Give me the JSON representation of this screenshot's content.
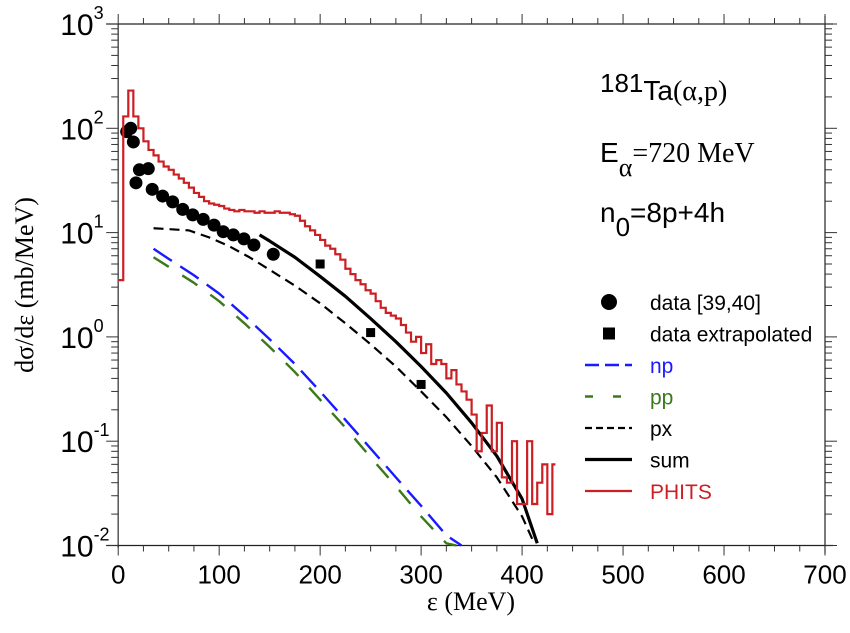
{
  "chart_data": {
    "type": "line",
    "title": "",
    "xlabel": "ε (MeV)",
    "ylabel": "dσ/dε (mb/MeV)",
    "xscale": "linear",
    "yscale": "log",
    "xlim": [
      0,
      700
    ],
    "ylim": [
      0.01,
      1000
    ],
    "x_ticks": [
      0,
      100,
      200,
      300,
      400,
      500,
      600,
      700
    ],
    "x_tick_labels": [
      "0",
      "100",
      "200",
      "300",
      "400",
      "500",
      "600",
      "700"
    ],
    "y_ticks": [
      0.01,
      0.1,
      1,
      10,
      100,
      1000
    ],
    "y_tick_labels": [
      {
        "base": "10",
        "exp": "-2"
      },
      {
        "base": "10",
        "exp": "-1"
      },
      {
        "base": "10",
        "exp": "0"
      },
      {
        "base": "10",
        "exp": "1"
      },
      {
        "base": "10",
        "exp": "2"
      },
      {
        "base": "10",
        "exp": "3"
      }
    ],
    "grid": false,
    "legend_position": "center-right",
    "annotations": [
      {
        "id": "reaction",
        "sup": "181",
        "main": "Ta",
        "extra": "(α,p)"
      },
      {
        "id": "energy",
        "main": "E",
        "sub": "α",
        "extra": "=720 MeV"
      },
      {
        "id": "excitons",
        "main": "n",
        "sub": "0",
        "extra": "=8p+4h"
      }
    ],
    "series": [
      {
        "name": "data [39,40]",
        "style": "marker-circle",
        "color": "#000000",
        "x": [
          8.4,
          12.4,
          15,
          17.6,
          21,
          29.8,
          33.7,
          44,
          53.9,
          63.9,
          73.8,
          84.2,
          94.9,
          104,
          114,
          124.5,
          134.4,
          153.6
        ],
        "y": [
          92.8,
          100,
          74,
          30,
          40,
          41,
          26,
          22.4,
          19.7,
          16.7,
          14.8,
          13.4,
          11.8,
          10.2,
          9.5,
          8.7,
          7.6,
          6.2
        ]
      },
      {
        "name": "data extrapolated",
        "style": "marker-square",
        "color": "#000000",
        "x": [
          200,
          250,
          300
        ],
        "y": [
          5.0,
          1.1,
          0.35
        ]
      },
      {
        "name": "np",
        "style": "long-dash",
        "color": "#1a1aff",
        "x": [
          35,
          50,
          75,
          100,
          125,
          150,
          175,
          200,
          225,
          250,
          275,
          300,
          325,
          340
        ],
        "y": [
          7.0,
          5.6,
          3.9,
          2.6,
          1.6,
          0.95,
          0.55,
          0.3,
          0.16,
          0.085,
          0.045,
          0.024,
          0.0125,
          0.009
        ]
      },
      {
        "name": "pp",
        "style": "sparse-dash",
        "color": "#3a7a1a",
        "x": [
          35,
          50,
          75,
          100,
          125,
          150,
          175,
          200,
          225,
          250,
          275,
          300,
          325,
          335
        ],
        "y": [
          5.8,
          4.7,
          3.3,
          2.2,
          1.35,
          0.8,
          0.46,
          0.25,
          0.135,
          0.07,
          0.037,
          0.019,
          0.0105,
          0.0092
        ]
      },
      {
        "name": "px",
        "style": "short-dash",
        "color": "#000000",
        "x": [
          35,
          50,
          70,
          90,
          110,
          130,
          150,
          175,
          200,
          225,
          250,
          275,
          300,
          325,
          350,
          375,
          400,
          412
        ],
        "y": [
          11,
          10.8,
          10.5,
          9.0,
          7.4,
          5.8,
          4.4,
          3.1,
          2.1,
          1.35,
          0.85,
          0.52,
          0.3,
          0.17,
          0.09,
          0.045,
          0.019,
          0.0105
        ]
      },
      {
        "name": "sum",
        "style": "solid-thick",
        "color": "#000000",
        "x": [
          140,
          150,
          175,
          200,
          225,
          250,
          275,
          300,
          325,
          350,
          375,
          400,
          415
        ],
        "y": [
          9.5,
          8.3,
          5.8,
          3.8,
          2.45,
          1.5,
          0.9,
          0.52,
          0.29,
          0.15,
          0.072,
          0.028,
          0.0105
        ]
      },
      {
        "name": "PHITS",
        "style": "step",
        "color": "#cc1f24",
        "x": [
          0,
          5,
          10,
          15,
          20,
          25,
          30,
          35,
          40,
          45,
          50,
          55,
          60,
          65,
          70,
          75,
          80,
          85,
          90,
          95,
          100,
          105,
          110,
          115,
          120,
          125,
          130,
          135,
          140,
          145,
          150,
          155,
          160,
          165,
          170,
          175,
          180,
          185,
          190,
          195,
          200,
          205,
          210,
          215,
          220,
          225,
          230,
          235,
          240,
          245,
          250,
          255,
          260,
          265,
          270,
          275,
          280,
          285,
          290,
          295,
          300,
          305,
          310,
          315,
          320,
          325,
          330,
          335,
          340,
          345,
          350,
          355,
          360,
          365,
          370,
          375,
          380,
          385,
          390,
          395,
          400,
          405,
          410,
          415,
          420,
          425,
          430
        ],
        "y": [
          3.5,
          130,
          230,
          130,
          100,
          75,
          62,
          55,
          48,
          43,
          40,
          36,
          33,
          30,
          27,
          24,
          22,
          20,
          19,
          18.5,
          18,
          17,
          16.5,
          16,
          16.5,
          16,
          16,
          15.5,
          16,
          15.5,
          15.5,
          16,
          15.5,
          15.5,
          15,
          14.5,
          13,
          11.5,
          10.5,
          9.5,
          8.5,
          7.5,
          7.0,
          6.2,
          5.5,
          4.5,
          4.0,
          3.5,
          3.2,
          2.8,
          2.6,
          2.2,
          1.9,
          1.7,
          1.6,
          1.5,
          1.3,
          1.1,
          0.9,
          1.0,
          0.7,
          0.85,
          0.55,
          0.6,
          0.55,
          0.4,
          0.48,
          0.35,
          0.3,
          0.25,
          0.18,
          0.08,
          0.12,
          0.22,
          0.08,
          0.15,
          0.045,
          0.04,
          0.1,
          0.025,
          0.025,
          0.1,
          0.025,
          0.04,
          0.06,
          0.02,
          0.06
        ]
      }
    ]
  }
}
